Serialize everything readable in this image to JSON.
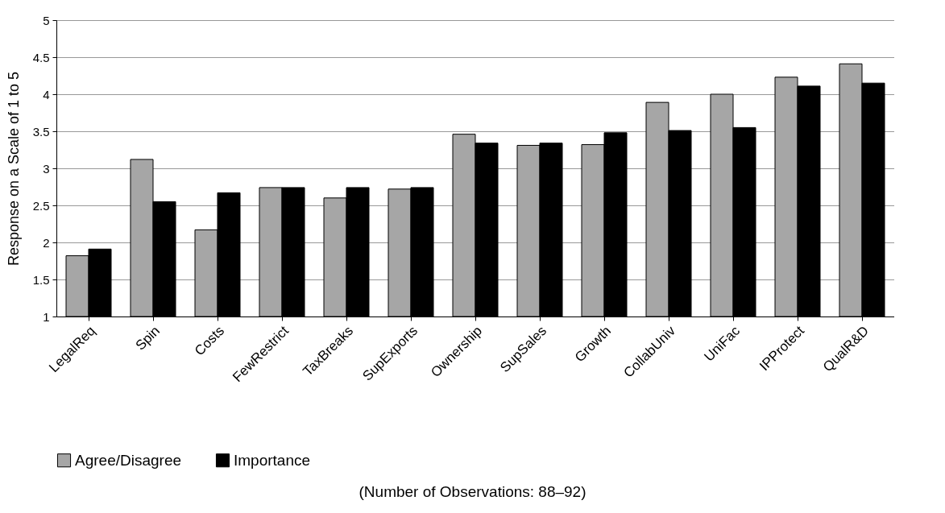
{
  "chart_data": {
    "type": "bar",
    "ylabel": "Response on a Scale of 1 to 5",
    "categories": [
      "LegalReq",
      "Spin",
      "Costs",
      "FewRestrict",
      "TaxBreaks",
      "SupExports",
      "Ownership",
      "SupSales",
      "Growth",
      "CollabUniv",
      "UniFac",
      "IPProtect",
      "QualR&D"
    ],
    "series": [
      {
        "name": "Agree/Disagree",
        "color": "#a6a6a6",
        "values": [
          1.82,
          3.12,
          2.17,
          2.74,
          2.6,
          2.72,
          3.46,
          3.31,
          3.32,
          3.89,
          4.0,
          4.23,
          4.41
        ]
      },
      {
        "name": "Importance",
        "color": "#000000",
        "values": [
          1.91,
          2.55,
          2.67,
          2.74,
          2.74,
          2.74,
          3.34,
          3.34,
          3.48,
          3.51,
          3.55,
          4.11,
          4.15
        ]
      }
    ],
    "ylim": [
      1,
      5
    ],
    "yticks": [
      1,
      1.5,
      2,
      2.5,
      3,
      3.5,
      4,
      4.5,
      5
    ],
    "grid": "y",
    "legend": "bottom",
    "annotations": [
      "(Number of Observations: 88–92)"
    ]
  }
}
